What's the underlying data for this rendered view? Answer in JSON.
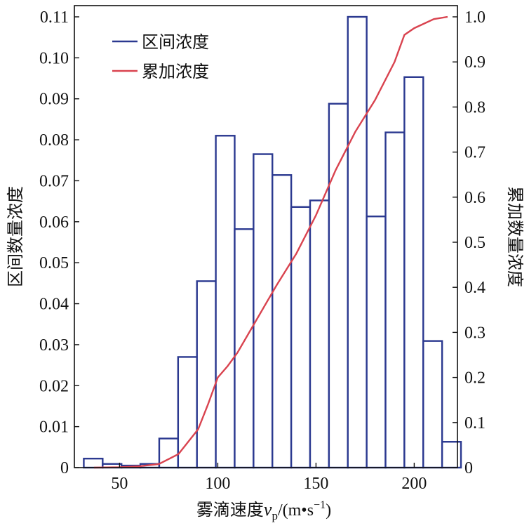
{
  "chart_data": {
    "type": "bar",
    "xlabel_main": "雾滴速度",
    "xlabel_var": "v",
    "xlabel_sub": "p",
    "xlabel_unit_open": "/(m",
    "xlabel_unit_mid": "s",
    "xlabel_unit_exp": "−1",
    "xlabel_unit_close": ")",
    "ylabel_left": "区间数量浓度",
    "ylabel_right": "累加数量浓度",
    "xlim": [
      27,
      222
    ],
    "ylim_left": [
      0,
      0.11
    ],
    "ylim_right": [
      0,
      1.0
    ],
    "x_ticks": [
      50,
      100,
      150,
      200
    ],
    "y_left_ticks": [
      "0",
      "0.01",
      "0.02",
      "0.03",
      "0.04",
      "0.05",
      "0.06",
      "0.07",
      "0.08",
      "0.09",
      "0.10",
      "0.11"
    ],
    "y_right_ticks": [
      "0",
      "0.1",
      "0.2",
      "0.3",
      "0.4",
      "0.5",
      "0.6",
      "0.7",
      "0.8",
      "0.9",
      "1.0"
    ],
    "bin_edges": [
      31.8,
      41.4,
      51.0,
      60.6,
      70.2,
      79.8,
      89.4,
      99.0,
      108.6,
      118.2,
      127.8,
      137.4,
      147.0,
      156.6,
      166.2,
      175.8,
      185.4,
      195.0,
      204.6,
      214.2,
      223.8
    ],
    "series": [
      {
        "name": "区间浓度",
        "kind": "bar",
        "color": "#2b3990",
        "values": [
          0.0022,
          0.0009,
          0.0005,
          0.0009,
          0.0071,
          0.027,
          0.0455,
          0.081,
          0.0582,
          0.0765,
          0.0714,
          0.0636,
          0.0652,
          0.0888,
          0.11,
          0.0613,
          0.0818,
          0.0953,
          0.0309,
          0.0063
        ]
      },
      {
        "name": "累加浓度",
        "kind": "line",
        "color": "#d9434f",
        "x": [
          37,
          50,
          60,
          70,
          80,
          90,
          95,
          100,
          105,
          110,
          120,
          130,
          140,
          150,
          160,
          170,
          180,
          190,
          195,
          200,
          210,
          217
        ],
        "y": [
          0.0,
          0.001,
          0.003,
          0.008,
          0.03,
          0.085,
          0.14,
          0.2,
          0.225,
          0.255,
          0.33,
          0.405,
          0.475,
          0.56,
          0.66,
          0.745,
          0.815,
          0.9,
          0.96,
          0.975,
          0.995,
          1.0
        ]
      }
    ],
    "legend_position": "top-left"
  }
}
